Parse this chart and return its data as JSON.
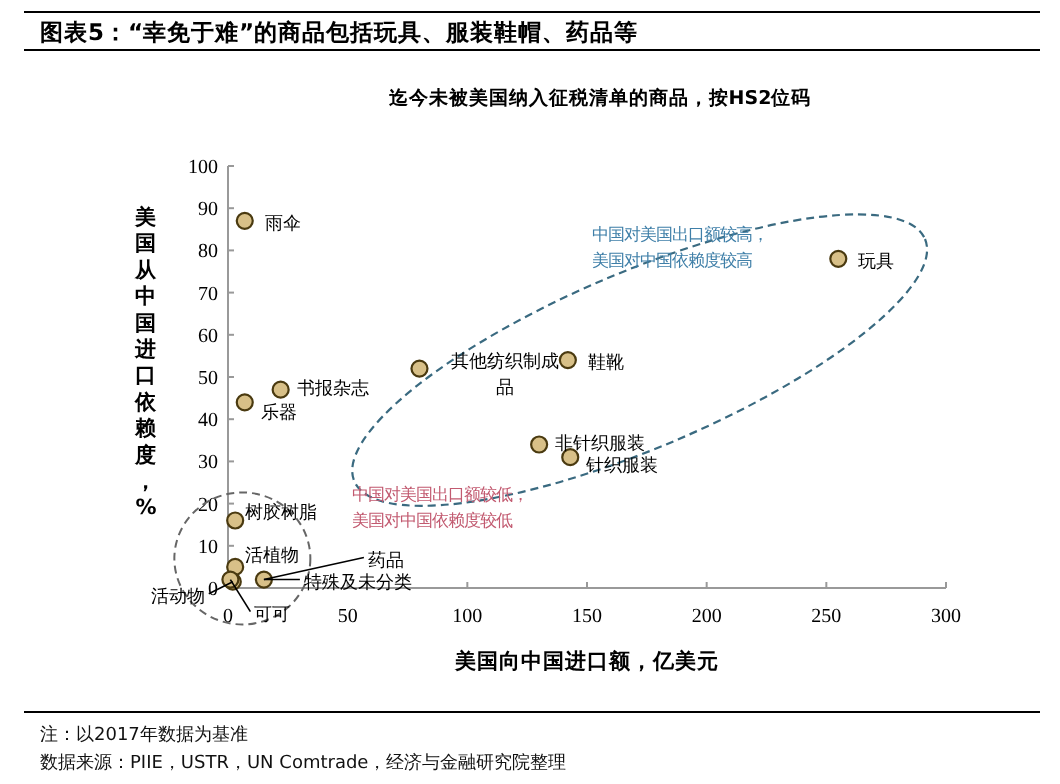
{
  "chart_data": {
    "type": "scatter",
    "title": "图表5：“幸免于难”的商品包括玩具、服装鞋帽、药品等",
    "subtitle": "迄今未被美国纳入征税清单的商品，按HS2位码",
    "xlabel": "美国向中国进口额，亿美元",
    "ylabel": "美国从中国进口依赖度，%",
    "x": [
      7,
      7,
      22,
      80,
      142,
      255,
      130,
      143,
      3,
      3,
      15,
      2,
      1
    ],
    "values": [
      87,
      44,
      47,
      52,
      54,
      78,
      34,
      31,
      16,
      5,
      2,
      1.5,
      2
    ],
    "color": "#d8c088",
    "marker": "circle",
    "xlim": [
      0,
      300
    ],
    "xticks": [
      0,
      50,
      100,
      150,
      200,
      250,
      300
    ],
    "ylim": [
      0,
      100
    ],
    "yticks": [
      0,
      10,
      20,
      30,
      40,
      50,
      60,
      70,
      80,
      90,
      100
    ],
    "grid": false,
    "annotations": [
      {
        "text": "雨伞",
        "x": 7,
        "y": 87
      },
      {
        "text": "乐器",
        "x": 7,
        "y": 44
      },
      {
        "text": "书报杂志",
        "x": 22,
        "y": 47
      },
      {
        "text": "其他纺织制成品",
        "x": 80,
        "y": 52
      },
      {
        "text": "鞋靴",
        "x": 142,
        "y": 54
      },
      {
        "text": "玩具",
        "x": 255,
        "y": 78
      },
      {
        "text": "非针织服装",
        "x": 130,
        "y": 34
      },
      {
        "text": "针织服装",
        "x": 143,
        "y": 31
      },
      {
        "text": "树胶树脂",
        "x": 3,
        "y": 16
      },
      {
        "text": "活植物",
        "x": 3,
        "y": 5
      },
      {
        "text": "药品",
        "x": 15,
        "y": 2
      },
      {
        "text": "特殊及未分类",
        "x": 15,
        "y": 2
      },
      {
        "text": "活动物",
        "x": 2,
        "y": 1.5
      },
      {
        "text": "可可",
        "x": 1,
        "y": 2
      },
      "中国对美国出口额较高，美国对中国依赖度较高",
      "中国对美国出口额较低，美国对中国依赖度较低",
      "注：以2017年数据为基准",
      "数据来源：PIIE，USTR，UN Comtrade，经济与金融研究院整理"
    ]
  }
}
